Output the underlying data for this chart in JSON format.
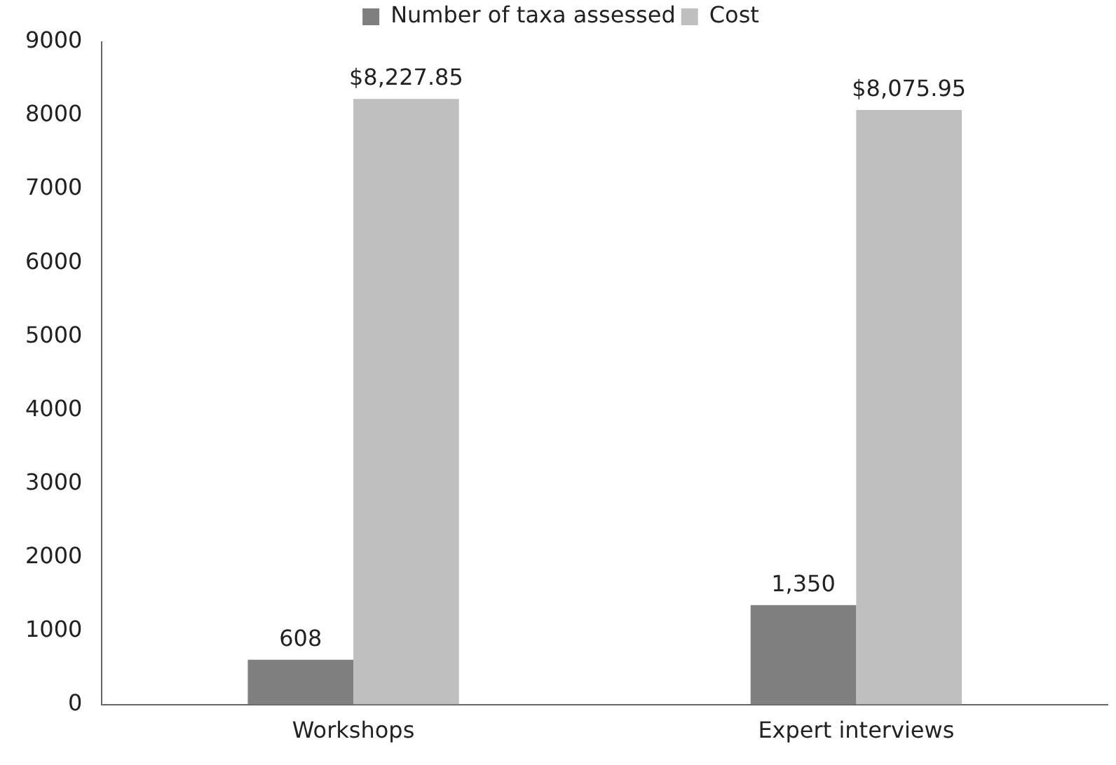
{
  "chart_data": {
    "type": "bar",
    "categories": [
      "Workshops",
      "Expert interviews"
    ],
    "series": [
      {
        "name": "Number of taxa assessed",
        "color": "#7f7f7f",
        "values": [
          608,
          1350
        ],
        "value_labels": [
          "608",
          "1,350"
        ]
      },
      {
        "name": "Cost",
        "color": "#bfbfbf",
        "values": [
          8227.85,
          8075.95
        ],
        "value_labels": [
          "$8,227.85",
          "$8,075.95"
        ]
      }
    ],
    "ylim": [
      0,
      9000
    ],
    "yticks": [
      0,
      1000,
      2000,
      3000,
      4000,
      5000,
      6000,
      7000,
      8000,
      9000
    ],
    "grid": false,
    "legend": "top"
  }
}
